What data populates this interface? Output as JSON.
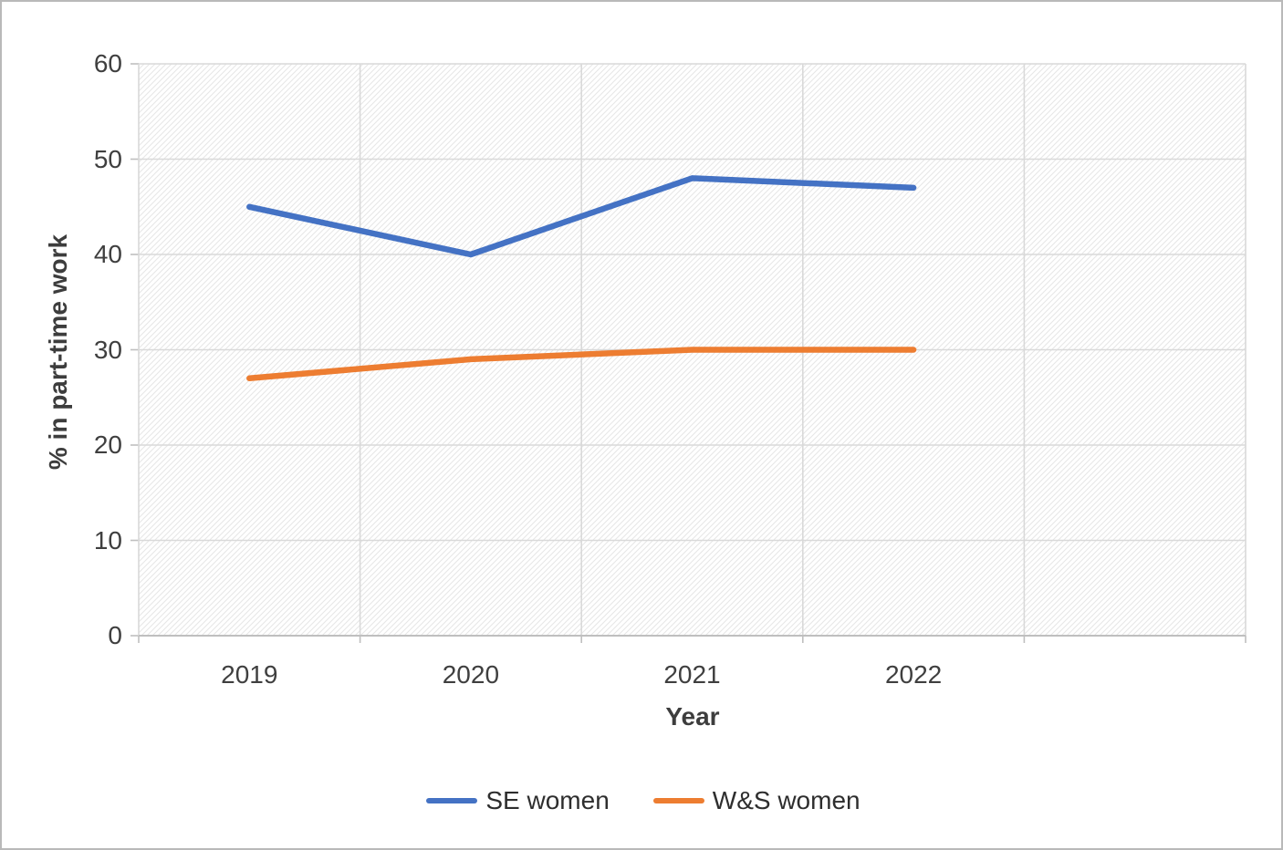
{
  "page": {
    "background": "#ffffff",
    "border_color": "#b9b9b9"
  },
  "chart_data": {
    "type": "line",
    "title": "",
    "xlabel": "Year",
    "ylabel": "% in part-time work",
    "categories": [
      "2019",
      "2020",
      "2021",
      "2022"
    ],
    "series": [
      {
        "name": "SE women",
        "color": "#4472C4",
        "values": [
          45,
          40,
          48,
          47
        ]
      },
      {
        "name": "W&S women",
        "color": "#ED7D31",
        "values": [
          27,
          29,
          30,
          30
        ]
      }
    ],
    "ylim": [
      0,
      60
    ],
    "yticks": [
      0,
      10,
      20,
      30,
      40,
      50,
      60
    ],
    "grid": true,
    "legend_position": "bottom",
    "plot_background": "diagonal-hatch",
    "colors": {
      "gridline": "#d9d9d9",
      "axis": "#bfbfbf",
      "hatch": "#e7e7e7"
    }
  }
}
